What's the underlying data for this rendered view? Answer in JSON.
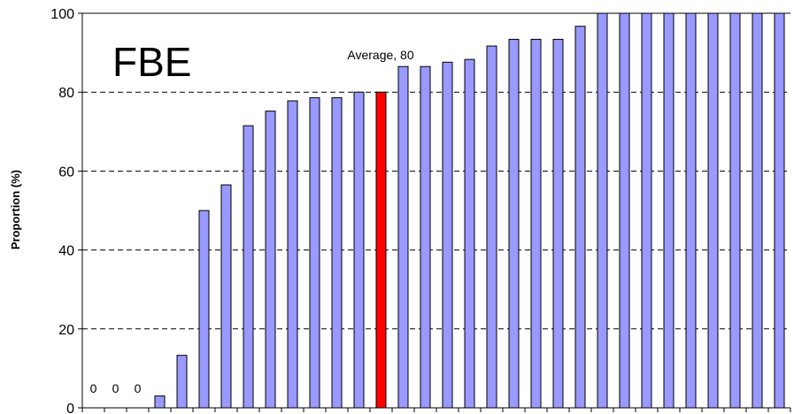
{
  "chart_data": {
    "type": "bar",
    "title": "FBE",
    "xlabel": "",
    "ylabel": "Proportion (%)",
    "ylim": [
      0,
      100
    ],
    "yticks": [
      "0",
      "20",
      "40",
      "60",
      "80",
      "100"
    ],
    "grid": "horizontal dashed",
    "values": [
      0,
      0,
      0,
      3,
      13.3,
      50,
      56.5,
      71.5,
      75.2,
      77.8,
      78.6,
      78.6,
      80,
      80,
      86.5,
      86.5,
      87.6,
      88.3,
      91.7,
      93.4,
      93.4,
      93.4,
      96.7,
      100,
      100,
      100,
      100,
      100,
      100,
      100,
      100,
      100
    ],
    "highlight_index": 13,
    "bar_color": "#9999ff",
    "highlight_color": "#ff0000",
    "zero_labels": [
      "0",
      "0",
      "0"
    ],
    "annotation": "Average, 80"
  }
}
